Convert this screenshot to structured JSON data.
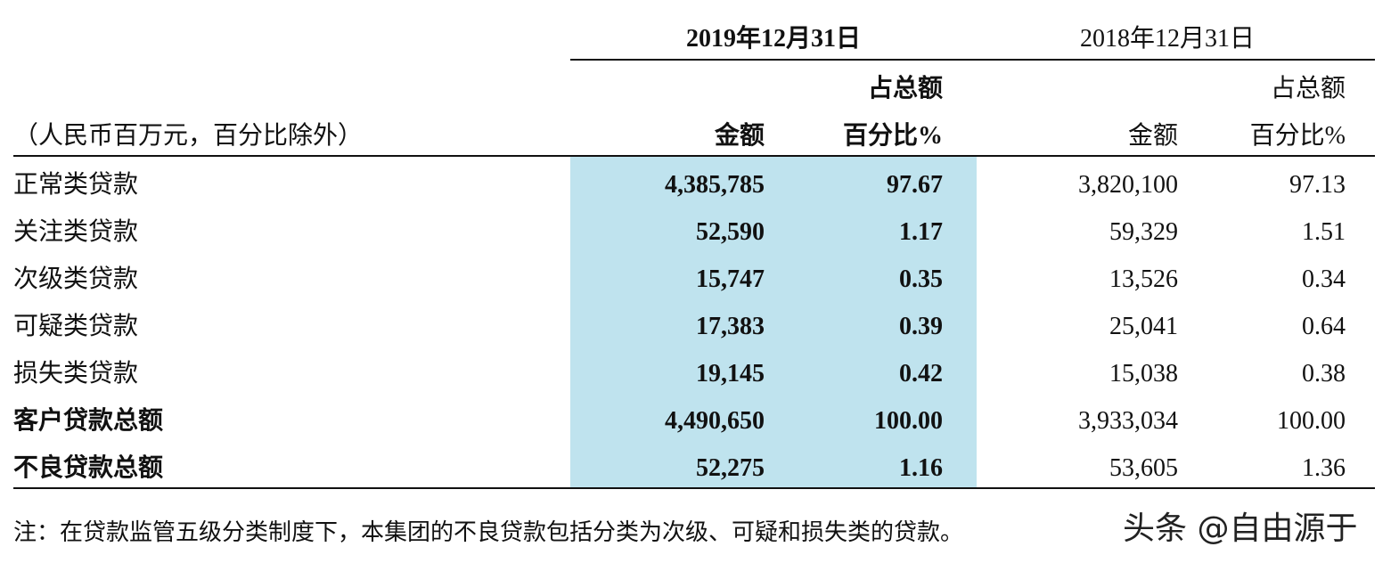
{
  "header": {
    "date_2019": "2019年12月31日",
    "date_2018": "2018年12月31日",
    "unit_note": "（人民币百万元，百分比除外）",
    "columns_2019": {
      "amount": "金额",
      "pct_line1": "占总额",
      "pct_line2": "百分比%"
    },
    "columns_2018": {
      "amount": "金额",
      "pct_line1": "占总额",
      "pct_line2": "百分比%"
    }
  },
  "table": {
    "rows": [
      [
        "正常类贷款",
        "4,385,785",
        "97.67",
        "3,820,100",
        "97.13"
      ],
      [
        "关注类贷款",
        "52,590",
        "1.17",
        "59,329",
        "1.51"
      ],
      [
        "次级类贷款",
        "15,747",
        "0.35",
        "13,526",
        "0.34"
      ],
      [
        "可疑类贷款",
        "17,383",
        "0.39",
        "25,041",
        "0.64"
      ],
      [
        "损失类贷款",
        "19,145",
        "0.42",
        "15,038",
        "0.38"
      ],
      [
        "客户贷款总额",
        "4,490,650",
        "100.00",
        "3,933,034",
        "100.00"
      ],
      [
        "不良贷款总额",
        "52,275",
        "1.16",
        "53,605",
        "1.36"
      ]
    ]
  },
  "footnote": "注：在贷款监管五级分类制度下，本集团的不良贷款包括分类为次级、可疑和损失类的贷款。",
  "watermark": "头条 @自由源于"
}
